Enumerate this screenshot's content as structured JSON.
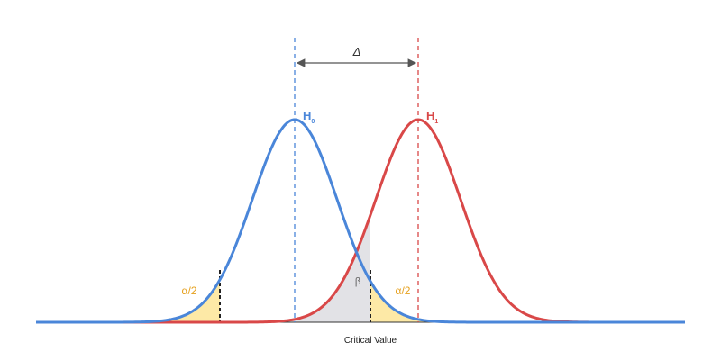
{
  "diagram": {
    "delta_label": "Δ",
    "h0": {
      "letter": "H",
      "sub": "0"
    },
    "h1": {
      "letter": "H",
      "sub": "1"
    },
    "alpha_left_label": "α/2",
    "alpha_right_label": "α/2",
    "beta_label": "β",
    "critical_value_label": "Critical Value",
    "colors": {
      "null": "#4a86d9",
      "alternative": "#d94848",
      "alpha_fill": "#fde9a6",
      "beta_fill": "#e2e2e6",
      "alpha_text": "#e6a01c",
      "beta_text": "#666666",
      "arrow": "#555555"
    }
  }
}
